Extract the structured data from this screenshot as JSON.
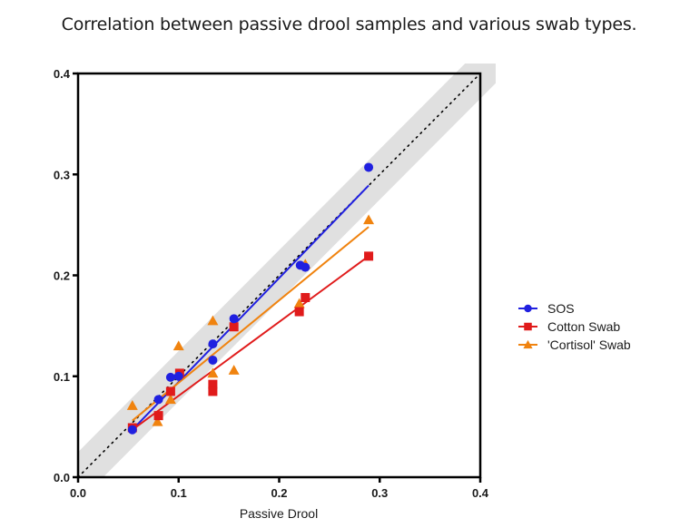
{
  "chart_data": {
    "type": "scatter",
    "title": "Correlation between passive drool samples and various swab types.",
    "xlabel": "Passive Drool",
    "ylabel": "",
    "xlim": [
      0.0,
      0.4
    ],
    "ylim": [
      0.0,
      0.4
    ],
    "x_ticks": [
      "0.0",
      "0.1",
      "0.2",
      "0.3",
      "0.4"
    ],
    "y_ticks": [
      "0.0",
      "0.1",
      "0.2",
      "0.3",
      "0.4"
    ],
    "grid": false,
    "legend_position": "right",
    "identity_line": {
      "style": "dotted",
      "color": "#000000",
      "from": [
        0.0,
        0.0
      ],
      "to": [
        0.4,
        0.4
      ]
    },
    "confidence_band": {
      "color": "#e0e0e0",
      "half_width": 0.025
    },
    "series": [
      {
        "name": "SOS",
        "color": "#2020e0",
        "marker": "circle",
        "points": [
          [
            0.054,
            0.047
          ],
          [
            0.08,
            0.077
          ],
          [
            0.092,
            0.099
          ],
          [
            0.1,
            0.1
          ],
          [
            0.134,
            0.132
          ],
          [
            0.134,
            0.116
          ],
          [
            0.155,
            0.157
          ],
          [
            0.221,
            0.21
          ],
          [
            0.226,
            0.208
          ],
          [
            0.289,
            0.307
          ]
        ],
        "fit": {
          "from": [
            0.054,
            0.047
          ],
          "to": [
            0.289,
            0.289
          ]
        }
      },
      {
        "name": "Cotton Swab",
        "color": "#e01b1b",
        "marker": "square",
        "points": [
          [
            0.054,
            0.049
          ],
          [
            0.08,
            0.061
          ],
          [
            0.092,
            0.085
          ],
          [
            0.101,
            0.103
          ],
          [
            0.134,
            0.092
          ],
          [
            0.134,
            0.085
          ],
          [
            0.155,
            0.149
          ],
          [
            0.22,
            0.164
          ],
          [
            0.226,
            0.178
          ],
          [
            0.289,
            0.219
          ]
        ],
        "fit": {
          "from": [
            0.054,
            0.047
          ],
          "to": [
            0.289,
            0.219
          ]
        }
      },
      {
        "name": "'Cortisol' Swab",
        "color": "#f0830f",
        "marker": "triangle",
        "points": [
          [
            0.054,
            0.071
          ],
          [
            0.079,
            0.055
          ],
          [
            0.092,
            0.077
          ],
          [
            0.1,
            0.13
          ],
          [
            0.134,
            0.155
          ],
          [
            0.134,
            0.103
          ],
          [
            0.155,
            0.106
          ],
          [
            0.22,
            0.172
          ],
          [
            0.226,
            0.211
          ],
          [
            0.289,
            0.255
          ]
        ],
        "fit": {
          "from": [
            0.054,
            0.056
          ],
          "to": [
            0.289,
            0.248
          ]
        }
      }
    ]
  }
}
